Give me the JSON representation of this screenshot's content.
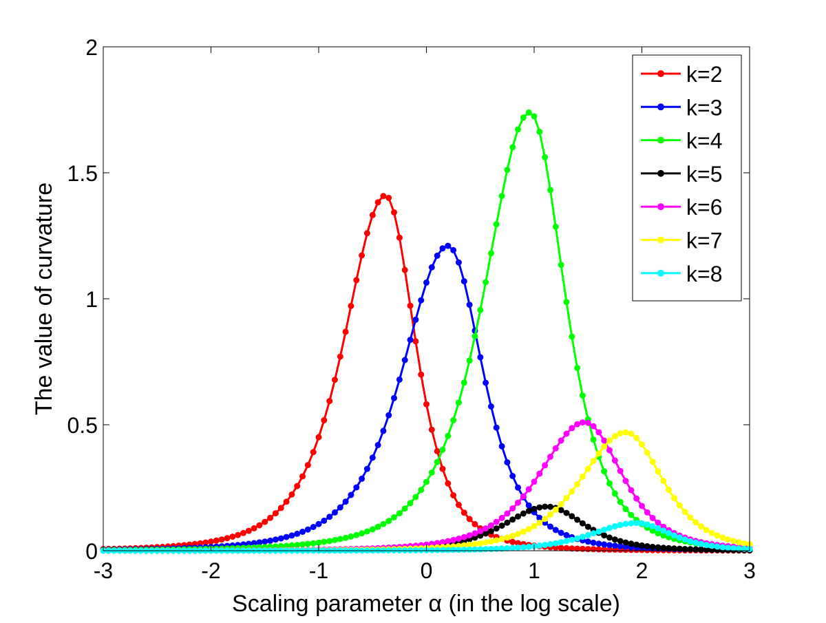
{
  "chart_data": {
    "type": "line",
    "xlabel": "Scaling parameter α (in the log scale)",
    "ylabel": "The value of curvature",
    "xlim": [
      -3,
      3
    ],
    "ylim": [
      0,
      2
    ],
    "xticks": [
      -3,
      -2,
      -1,
      0,
      1,
      2,
      3
    ],
    "yticks": [
      0,
      0.5,
      1,
      1.5,
      2
    ],
    "xtick_labels": [
      "-3",
      "-2",
      "-1",
      "0",
      "1",
      "2",
      "3"
    ],
    "ytick_labels": [
      "0",
      "0.5",
      "1",
      "1.5",
      "2"
    ],
    "grid": false,
    "legend_position": "top-right",
    "x_samples": {
      "start": -3,
      "stop": 3,
      "count": 121
    },
    "series": [
      {
        "name": "k=2",
        "color": "#ff0000",
        "peak_x": -0.38,
        "peak_y": 1.41,
        "width_left": 0.5,
        "width_right": 0.36
      },
      {
        "name": "k=3",
        "color": "#0000ff",
        "peak_x": 0.2,
        "peak_y": 1.21,
        "width_left": 0.55,
        "width_right": 0.42
      },
      {
        "name": "k=4",
        "color": "#00ff00",
        "peak_x": 0.96,
        "peak_y": 1.74,
        "width_left": 0.55,
        "width_right": 0.42
      },
      {
        "name": "k=5",
        "color": "#000000",
        "peak_x": 1.12,
        "peak_y": 0.175,
        "width_left": 0.52,
        "width_right": 0.45
      },
      {
        "name": "k=6",
        "color": "#ff00ff",
        "peak_x": 1.47,
        "peak_y": 0.51,
        "width_left": 0.55,
        "width_right": 0.45
      },
      {
        "name": "k=7",
        "color": "#ffff00",
        "peak_x": 1.85,
        "peak_y": 0.47,
        "width_left": 0.55,
        "width_right": 0.45
      },
      {
        "name": "k=8",
        "color": "#00ffff",
        "peak_x": 1.95,
        "peak_y": 0.11,
        "width_left": 0.55,
        "width_right": 0.42
      }
    ]
  }
}
